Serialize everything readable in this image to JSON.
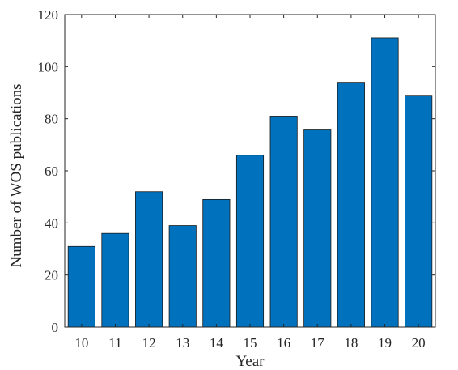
{
  "chart_data": {
    "type": "bar",
    "categories": [
      "10",
      "11",
      "12",
      "13",
      "14",
      "15",
      "16",
      "17",
      "18",
      "19",
      "20"
    ],
    "values": [
      31,
      36,
      52,
      39,
      49,
      66,
      81,
      76,
      94,
      111,
      89
    ],
    "xlabel": "Year",
    "ylabel": "Number of WOS publications",
    "ylim": [
      0,
      120
    ],
    "yticks": [
      0,
      20,
      40,
      60,
      80,
      100,
      120
    ],
    "bar_color": "#0072BD",
    "grid": false
  }
}
